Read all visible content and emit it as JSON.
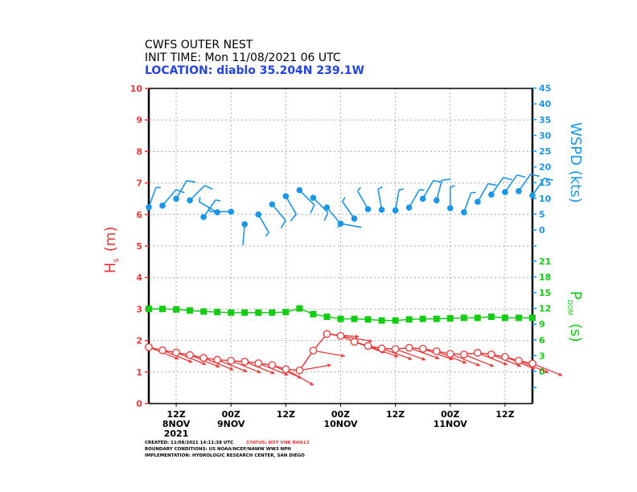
{
  "header": {
    "title": "CWFS OUTER NEST",
    "init_time": "INIT TIME: Mon 11/08/2021 06 UTC",
    "location": "LOCATION: diablo 35.204N 239.1W"
  },
  "footer": {
    "created": "CREATED: 11/08/2021 14:11:38 UTC",
    "status": "STATUS: NOT UNK RAN13",
    "boundary": "BOUNDARY CONDITIONS: US NOAA/NCEP/NAWW WW3 NPH",
    "implementation": "IMPLEMENTATION: HYDROLOGIC RESEARCH CENTER, SAN DIEGO"
  },
  "colors": {
    "hs": "#e83a3a",
    "wspd": "#1a96e6",
    "period": "#14cc14",
    "location": "#2244dd"
  },
  "chart_data": {
    "type": "line",
    "grid": true,
    "x_ticks": [
      {
        "time": "2021-11-08 12Z",
        "label": [
          "12Z",
          "8NOV",
          "2021"
        ]
      },
      {
        "time": "2021-11-09 00Z",
        "label": [
          "00Z",
          "9NOV"
        ]
      },
      {
        "time": "2021-11-09 12Z",
        "label": [
          "12Z"
        ]
      },
      {
        "time": "2021-11-10 00Z",
        "label": [
          "00Z",
          "10NOV"
        ]
      },
      {
        "time": "2021-11-10 12Z",
        "label": [
          "12Z"
        ]
      },
      {
        "time": "2021-11-11 00Z",
        "label": [
          "00Z",
          "11NOV"
        ]
      },
      {
        "time": "2021-11-11 12Z",
        "label": [
          "12Z"
        ]
      }
    ],
    "xlim": [
      "2021-11-08 06Z",
      "2021-11-11 18Z"
    ],
    "axes": {
      "hs": {
        "label": "Hs (m)",
        "label_main": "H",
        "label_sub": "s",
        "label_unit": "(m)",
        "ylim": [
          0,
          10
        ],
        "ticks": [
          0,
          1,
          2,
          3,
          4,
          5,
          6,
          7,
          8,
          9,
          10
        ]
      },
      "wspd": {
        "label": "WSPD (kts)",
        "ylim": [
          0,
          45
        ],
        "ticks": [
          0,
          5,
          10,
          15,
          20,
          25,
          30,
          35,
          40,
          45
        ]
      },
      "period": {
        "label": "PDOM (s)",
        "label_main": "P",
        "label_sub": "DOM",
        "label_unit": "(s)",
        "ticks": [
          0,
          3,
          6,
          9,
          12,
          15,
          18,
          21
        ]
      }
    },
    "times": [
      "2021-11-08 06Z",
      "2021-11-08 09Z",
      "2021-11-08 12Z",
      "2021-11-08 15Z",
      "2021-11-08 18Z",
      "2021-11-08 21Z",
      "2021-11-09 00Z",
      "2021-11-09 03Z",
      "2021-11-09 06Z",
      "2021-11-09 09Z",
      "2021-11-09 12Z",
      "2021-11-09 15Z",
      "2021-11-09 18Z",
      "2021-11-09 21Z",
      "2021-11-10 00Z",
      "2021-11-10 03Z",
      "2021-11-10 06Z",
      "2021-11-10 09Z",
      "2021-11-10 12Z",
      "2021-11-10 15Z",
      "2021-11-10 18Z",
      "2021-11-10 21Z",
      "2021-11-11 00Z",
      "2021-11-11 03Z",
      "2021-11-11 06Z",
      "2021-11-11 09Z",
      "2021-11-11 12Z",
      "2021-11-11 15Z",
      "2021-11-11 18Z"
    ],
    "series": [
      {
        "key": "hs",
        "values": [
          1.79,
          1.69,
          1.62,
          1.54,
          1.45,
          1.39,
          1.36,
          1.33,
          1.28,
          1.22,
          1.09,
          1.05,
          1.68,
          2.21,
          2.15,
          1.96,
          1.83,
          1.75,
          1.73,
          1.77,
          1.74,
          1.66,
          1.58,
          1.56,
          1.61,
          1.56,
          1.48,
          1.36,
          1.27
        ],
        "wave_dir_from": [
          292,
          292,
          292,
          292,
          292,
          292,
          292,
          292,
          292,
          294,
          300,
          260,
          280,
          275,
          280,
          290,
          290,
          290,
          290,
          290,
          290,
          292,
          292,
          292,
          292,
          292,
          292,
          292,
          292
        ]
      },
      {
        "key": "period",
        "values": [
          11.9,
          11.9,
          11.8,
          11.6,
          11.4,
          11.3,
          11.2,
          11.2,
          11.2,
          11.2,
          11.3,
          12.0,
          10.9,
          10.4,
          10.0,
          10.0,
          9.9,
          9.7,
          9.7,
          9.9,
          10.0,
          10.0,
          10.1,
          10.2,
          10.2,
          10.4,
          10.2,
          10.2,
          10.2
        ]
      },
      {
        "key": "wspd",
        "values": [
          7.2,
          7.7,
          9.9,
          9.4,
          4.1,
          5.6,
          5.8,
          1.8,
          4.9,
          8.1,
          10.7,
          12.6,
          10.2,
          7.1,
          2.0,
          3.6,
          6.6,
          6.4,
          6.2,
          7.1,
          9.9,
          9.4,
          6.9,
          5.6,
          8.9,
          11.2,
          12.0,
          12.3,
          11.0
        ],
        "wind_dir_from": [
          20,
          40,
          30,
          45,
          35,
          300,
          270,
          185,
          150,
          140,
          150,
          135,
          135,
          140,
          100,
          325,
          330,
          350,
          10,
          30,
          30,
          15,
          0,
          20,
          30,
          35,
          35,
          35,
          35
        ]
      }
    ]
  }
}
